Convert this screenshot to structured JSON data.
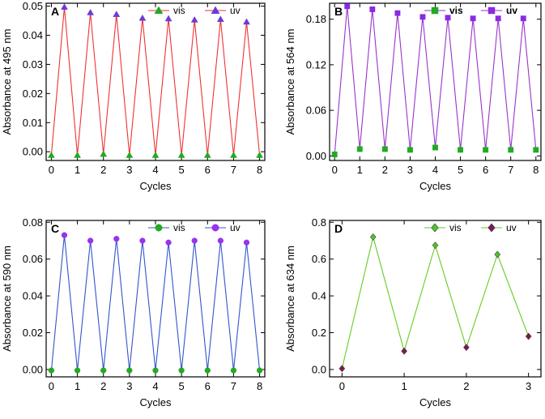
{
  "chart_data": [
    {
      "type": "line",
      "panel": "A",
      "xlabel": "Cycles",
      "ylabel": "Absorbance at 495 nm",
      "xlim": [
        -0.2,
        8.2
      ],
      "ylim": [
        -0.003,
        0.051
      ],
      "xticks": [
        0,
        1,
        2,
        3,
        4,
        5,
        6,
        7,
        8
      ],
      "xtick_labels": [
        "0",
        "1",
        "2",
        "3",
        "4",
        "5",
        "6",
        "7",
        "8"
      ],
      "yticks": [
        0,
        0.01,
        0.02,
        0.03,
        0.04,
        0.05
      ],
      "ytick_labels": [
        "0.00",
        "0.01",
        "0.02",
        "0.03",
        "0.04",
        "0.05"
      ],
      "line_color": "#ee3333",
      "marker": "triangle",
      "legend_bold": false,
      "series": [
        {
          "name": "vis",
          "color": "#22aa22",
          "x": [
            0,
            1,
            2,
            3,
            4,
            5,
            6,
            7,
            8
          ],
          "y": [
            -0.0012,
            -0.0012,
            -0.0008,
            -0.0012,
            -0.0012,
            -0.0012,
            -0.0012,
            -0.0012,
            -0.0012
          ]
        },
        {
          "name": "uv",
          "color": "#6a3cd8",
          "x": [
            0.5,
            1.5,
            2.5,
            3.5,
            4.5,
            5.5,
            6.5,
            7.5
          ],
          "y": [
            0.0497,
            0.0478,
            0.0472,
            0.0459,
            0.0457,
            0.0453,
            0.0455,
            0.0446
          ]
        }
      ]
    },
    {
      "type": "line",
      "panel": "B",
      "xlabel": "Cycles",
      "ylabel": "Absorbance at 564 nm",
      "xlim": [
        -0.2,
        8.2
      ],
      "ylim": [
        -0.006,
        0.201
      ],
      "xticks": [
        0,
        1,
        2,
        3,
        4,
        5,
        6,
        7,
        8
      ],
      "xtick_labels": [
        "0",
        "1",
        "2",
        "3",
        "4",
        "5",
        "6",
        "7",
        "8"
      ],
      "yticks": [
        0,
        0.06,
        0.12,
        0.18
      ],
      "ytick_labels": [
        "0.00",
        "0.06",
        "0.12",
        "0.18"
      ],
      "line_color": "#9933cc",
      "marker": "square",
      "legend_bold": true,
      "series": [
        {
          "name": "vis",
          "color": "#22aa22",
          "x": [
            0,
            1,
            2,
            3,
            4,
            5,
            6,
            7,
            8
          ],
          "y": [
            0.002,
            0.009,
            0.009,
            0.008,
            0.011,
            0.008,
            0.008,
            0.008,
            0.008
          ]
        },
        {
          "name": "uv",
          "color": "#8a2be2",
          "x": [
            0.5,
            1.5,
            2.5,
            3.5,
            4.5,
            5.5,
            6.5,
            7.5
          ],
          "y": [
            0.197,
            0.193,
            0.188,
            0.183,
            0.182,
            0.181,
            0.181,
            0.181
          ]
        }
      ]
    },
    {
      "type": "line",
      "panel": "C",
      "xlabel": "Cycles",
      "ylabel": "Absorbance at 590 nm",
      "xlim": [
        -0.2,
        8.2
      ],
      "ylim": [
        -0.004,
        0.081
      ],
      "xticks": [
        0,
        1,
        2,
        3,
        4,
        5,
        6,
        7,
        8
      ],
      "xtick_labels": [
        "0",
        "1",
        "2",
        "3",
        "4",
        "5",
        "6",
        "7",
        "8"
      ],
      "yticks": [
        0,
        0.02,
        0.04,
        0.06,
        0.08
      ],
      "ytick_labels": [
        "0.00",
        "0.02",
        "0.04",
        "0.06",
        "0.08"
      ],
      "line_color": "#3355cc",
      "marker": "circle",
      "legend_bold": false,
      "series": [
        {
          "name": "vis",
          "color": "#22aa22",
          "x": [
            0,
            1,
            2,
            3,
            4,
            5,
            6,
            7,
            8
          ],
          "y": [
            -0.0005,
            -0.0005,
            -0.0005,
            -0.0005,
            -0.0005,
            -0.0005,
            -0.0005,
            -0.0005,
            -0.0005
          ]
        },
        {
          "name": "uv",
          "color": "#9933ee",
          "x": [
            0.5,
            1.5,
            2.5,
            3.5,
            4.5,
            5.5,
            6.5,
            7.5
          ],
          "y": [
            0.073,
            0.07,
            0.071,
            0.07,
            0.069,
            0.07,
            0.07,
            0.069
          ]
        }
      ]
    },
    {
      "type": "line",
      "panel": "D",
      "xlabel": "Cycles",
      "ylabel": "Absorbance at 634 nm",
      "xlim": [
        -0.2,
        3.2
      ],
      "ylim": [
        -0.04,
        0.81
      ],
      "xticks": [
        0,
        1,
        2,
        3
      ],
      "xtick_labels": [
        "0",
        "1",
        "2",
        "3"
      ],
      "yticks": [
        0,
        0.2,
        0.4,
        0.6,
        0.8
      ],
      "ytick_labels": [
        "0.0",
        "0.2",
        "0.4",
        "0.6",
        "0.8"
      ],
      "line_color": "#66cc22",
      "marker": "diamond",
      "legend_bold": false,
      "series": [
        {
          "name": "vis",
          "color": "#44cc22",
          "x": [
            0.5,
            1.5,
            2.5
          ],
          "y": [
            0.72,
            0.675,
            0.625
          ]
        },
        {
          "name": "uv",
          "color": "#7a1a55",
          "x": [
            0,
            1,
            2,
            3
          ],
          "y": [
            0.005,
            0.1,
            0.12,
            0.18
          ]
        }
      ]
    }
  ]
}
